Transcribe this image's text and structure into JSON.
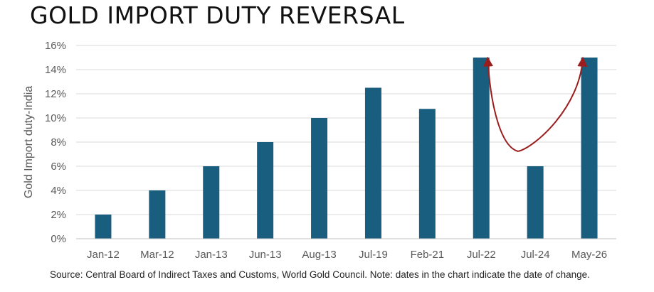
{
  "title": "GOLD IMPORT DUTY REVERSAL",
  "source": "Source: Central Board of Indirect Taxes and Customs, World Gold Council. Note: dates in the chart indicate the date of change.",
  "colors": {
    "bar": "#1a5e7f",
    "arrow": "#9b1c1c",
    "grid": "#d9d9d9",
    "axis": "#bfbfbf",
    "text": "#595959"
  },
  "chart_data": {
    "type": "bar",
    "categories": [
      "Jan-12",
      "Mar-12",
      "Jan-13",
      "Jun-13",
      "Aug-13",
      "Jul-19",
      "Feb-21",
      "Jul-22",
      "Jul-24",
      "May-26"
    ],
    "values": [
      2,
      4,
      6,
      8,
      10,
      12.5,
      10.75,
      15,
      6,
      15
    ],
    "ylabel": "Gold Import duty-India",
    "ylim": [
      0,
      16
    ],
    "yticks": [
      0,
      2,
      4,
      6,
      8,
      10,
      12,
      14,
      16
    ],
    "ytick_format": "%",
    "grid": true,
    "annotations": [
      {
        "type": "curved-double-arrow",
        "from_category": "Jul-22",
        "to_category": "May-26",
        "via_category": "Jul-24",
        "color": "arrow"
      }
    ]
  }
}
